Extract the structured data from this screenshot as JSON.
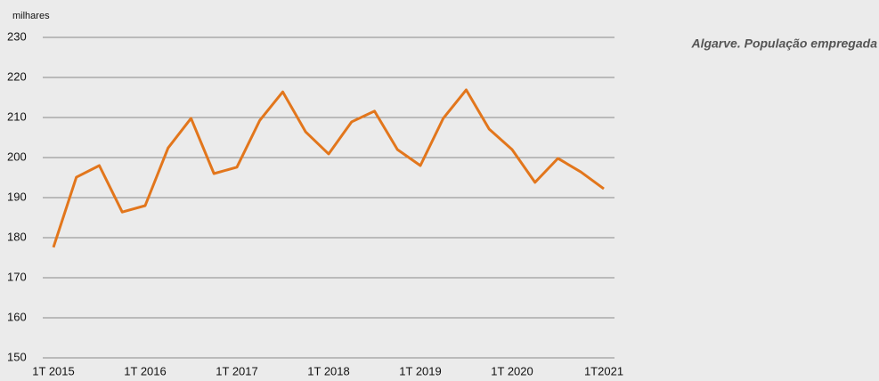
{
  "chart_data": {
    "type": "line",
    "title": "Algarve. População empregada",
    "y_label": "milhares",
    "categories": [
      "1T 2015",
      null,
      null,
      null,
      "1T 2016",
      null,
      null,
      null,
      "1T 2017",
      null,
      null,
      null,
      "1T 2018",
      null,
      null,
      null,
      "1T 2019",
      null,
      null,
      null,
      "1T 2020",
      null,
      null,
      null,
      "1T2021"
    ],
    "series": [
      {
        "name": "População empregada",
        "color": "#e2761c",
        "values": [
          177.6,
          195.1,
          198.0,
          186.4,
          188.0,
          202.4,
          209.8,
          196.0,
          197.6,
          209.3,
          216.4,
          206.4,
          200.9,
          208.9,
          211.6,
          202.0,
          198.0,
          209.8,
          216.9,
          207.1,
          202.0,
          193.8,
          199.8,
          196.4,
          192.2
        ]
      }
    ],
    "ylim": [
      150,
      230
    ],
    "yticks": [
      150,
      160,
      170,
      180,
      190,
      200,
      210,
      220,
      230
    ],
    "grid": true
  }
}
